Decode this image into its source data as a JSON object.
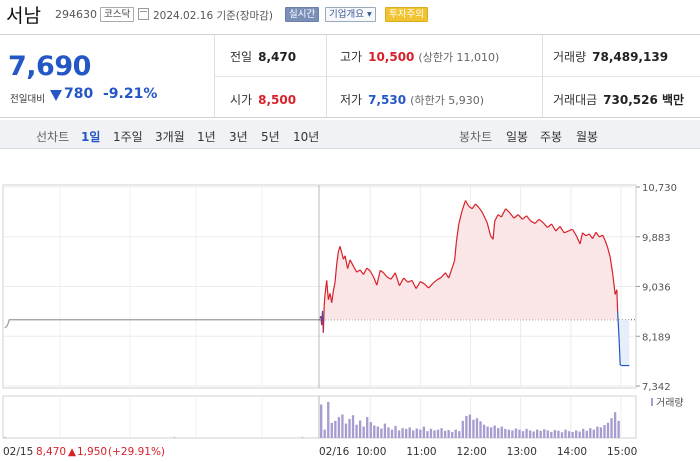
{
  "header": {
    "stock_name": "서남",
    "stock_code": "294630",
    "market": "코스닥",
    "date_label": "2024.02.16 기준(장마감)",
    "realtime_btn": "실시간",
    "company_btn": "기업개요",
    "warning_badge": "투자주의"
  },
  "summary": {
    "price": "7,690",
    "vs_prev_label": "전일대비",
    "change": "780",
    "change_pct": "-9.21%",
    "prev_close_label": "전일",
    "prev_close": "8,470",
    "high_label": "고가",
    "high": "10,500",
    "upper_limit": "(상한가 11,010)",
    "volume_label": "거래량",
    "volume": "78,489,139",
    "open_label": "시가",
    "open": "8,500",
    "low_label": "저가",
    "low": "7,530",
    "lower_limit": "(하한가 5,930)",
    "amount_label": "거래대금",
    "amount": "730,526 백만"
  },
  "tabs": {
    "line_label": "선차트",
    "line_periods": [
      "1일",
      "1주일",
      "3개월",
      "1년",
      "3년",
      "5년",
      "10년"
    ],
    "selected": "1일",
    "candle_label": "봉차트",
    "candle_periods": [
      "일봉",
      "주봉",
      "월봉"
    ]
  },
  "colors": {
    "up": "#d8212a",
    "down": "#2457c5",
    "volume": "#a89bd0",
    "fill": "#fbe6e7"
  },
  "chart_data": {
    "type": "line",
    "y_ticks": [
      "10,730",
      "9,883",
      "9,036",
      "8,189",
      "7,342"
    ],
    "ylim": [
      7342,
      10730
    ],
    "reference_price": 8470,
    "x_ticks": [
      "02/16",
      "10:00",
      "11:00",
      "12:00",
      "13:00",
      "14:00",
      "15:00"
    ],
    "x_start_label": "02/15",
    "prev_day_summary": {
      "close": "8,470",
      "change": "1,950",
      "change_pct": "(+29.91%)"
    },
    "volume_label": "거래량",
    "prev_day_series": [
      [
        0.0,
        8330
      ],
      [
        0.6,
        8380
      ],
      [
        1.0,
        8470
      ],
      [
        2.0,
        8470
      ],
      [
        10.0,
        8470
      ],
      [
        30.0,
        8470
      ],
      [
        74.0,
        8470
      ]
    ],
    "series": [
      {
        "name": "",
        "points": [
          [
            "09:00",
            8500
          ],
          [
            "09:01",
            8530
          ],
          [
            "09:02",
            8380
          ],
          [
            "09:03",
            8620
          ],
          [
            "09:04",
            8250
          ],
          [
            "09:05",
            8700
          ],
          [
            "09:06",
            8900
          ],
          [
            "09:08",
            9140
          ],
          [
            "09:10",
            8810
          ],
          [
            "09:12",
            8920
          ],
          [
            "09:14",
            8760
          ],
          [
            "09:16",
            8960
          ],
          [
            "09:18",
            9110
          ],
          [
            "09:20",
            9420
          ],
          [
            "09:22",
            9630
          ],
          [
            "09:24",
            9720
          ],
          [
            "09:26",
            9610
          ],
          [
            "09:28",
            9500
          ],
          [
            "09:30",
            9560
          ],
          [
            "09:33",
            9340
          ],
          [
            "09:36",
            9490
          ],
          [
            "09:40",
            9380
          ],
          [
            "09:44",
            9280
          ],
          [
            "09:48",
            9320
          ],
          [
            "09:52",
            9240
          ],
          [
            "09:56",
            9350
          ],
          [
            "10:00",
            9300
          ],
          [
            "10:04",
            9200
          ],
          [
            "10:08",
            9060
          ],
          [
            "10:12",
            9310
          ],
          [
            "10:16",
            9270
          ],
          [
            "10:20",
            9200
          ],
          [
            "10:25",
            9160
          ],
          [
            "10:30",
            9270
          ],
          [
            "10:35",
            9050
          ],
          [
            "10:40",
            9180
          ],
          [
            "10:45",
            9110
          ],
          [
            "10:50",
            9140
          ],
          [
            "10:55",
            9000
          ],
          [
            "11:00",
            9120
          ],
          [
            "11:05",
            9080
          ],
          [
            "11:10",
            9010
          ],
          [
            "11:15",
            9090
          ],
          [
            "11:20",
            9150
          ],
          [
            "11:25",
            9190
          ],
          [
            "11:30",
            9270
          ],
          [
            "11:34",
            9180
          ],
          [
            "11:38",
            9350
          ],
          [
            "11:41",
            9480
          ],
          [
            "11:43",
            9780
          ],
          [
            "11:46",
            10100
          ],
          [
            "11:50",
            10330
          ],
          [
            "11:54",
            10500
          ],
          [
            "11:58",
            10400
          ],
          [
            "12:02",
            10360
          ],
          [
            "12:06",
            10440
          ],
          [
            "12:10",
            10380
          ],
          [
            "12:14",
            10300
          ],
          [
            "12:18",
            10180
          ],
          [
            "12:20",
            10120
          ],
          [
            "12:24",
            9900
          ],
          [
            "12:27",
            9840
          ],
          [
            "12:29",
            10150
          ],
          [
            "12:33",
            10260
          ],
          [
            "12:37",
            10220
          ],
          [
            "12:42",
            10360
          ],
          [
            "12:47",
            10290
          ],
          [
            "12:52",
            10200
          ],
          [
            "12:57",
            10260
          ],
          [
            "13:02",
            10180
          ],
          [
            "13:07",
            10240
          ],
          [
            "13:12",
            10150
          ],
          [
            "13:17",
            10110
          ],
          [
            "13:22",
            10180
          ],
          [
            "13:27",
            10120
          ],
          [
            "13:32",
            10040
          ],
          [
            "13:37",
            10100
          ],
          [
            "13:42",
            9980
          ],
          [
            "13:47",
            10060
          ],
          [
            "13:52",
            9950
          ],
          [
            "13:57",
            9980
          ],
          [
            "14:02",
            10010
          ],
          [
            "14:07",
            9890
          ],
          [
            "14:11",
            9760
          ],
          [
            "14:14",
            9950
          ],
          [
            "14:18",
            9900
          ],
          [
            "14:22",
            9930
          ],
          [
            "14:26",
            9850
          ],
          [
            "14:30",
            9960
          ],
          [
            "14:34",
            9880
          ],
          [
            "14:38",
            9910
          ],
          [
            "14:41",
            9820
          ],
          [
            "14:44",
            9700
          ],
          [
            "14:47",
            9540
          ],
          [
            "14:50",
            9260
          ],
          [
            "14:53",
            8900
          ],
          [
            "14:55",
            8980
          ],
          [
            "14:56",
            8610
          ],
          [
            "14:58",
            8060
          ],
          [
            "14:59",
            7700
          ],
          [
            "15:01",
            7690
          ],
          [
            "15:10",
            7690
          ]
        ]
      }
    ],
    "volume_prev_day": [
      [
        0.3,
        0.03
      ],
      [
        40,
        0.03
      ],
      [
        70,
        0.03
      ]
    ],
    "volume_intraday": [
      0.88,
      0.22,
      0.95,
      0.4,
      0.45,
      0.55,
      0.62,
      0.38,
      0.5,
      0.6,
      0.35,
      0.46,
      0.3,
      0.55,
      0.42,
      0.33,
      0.3,
      0.25,
      0.38,
      0.28,
      0.22,
      0.32,
      0.2,
      0.26,
      0.24,
      0.28,
      0.2,
      0.25,
      0.22,
      0.3,
      0.18,
      0.24,
      0.2,
      0.22,
      0.26,
      0.19,
      0.21,
      0.16,
      0.22,
      0.18,
      0.45,
      0.58,
      0.62,
      0.48,
      0.52,
      0.44,
      0.35,
      0.3,
      0.28,
      0.33,
      0.26,
      0.3,
      0.24,
      0.22,
      0.2,
      0.25,
      0.22,
      0.18,
      0.24,
      0.2,
      0.17,
      0.22,
      0.19,
      0.23,
      0.2,
      0.16,
      0.21,
      0.19,
      0.15,
      0.22,
      0.18,
      0.16,
      0.2,
      0.17,
      0.24,
      0.19,
      0.26,
      0.22,
      0.3,
      0.28,
      0.34,
      0.4,
      0.52,
      0.68,
      0.45
    ]
  }
}
